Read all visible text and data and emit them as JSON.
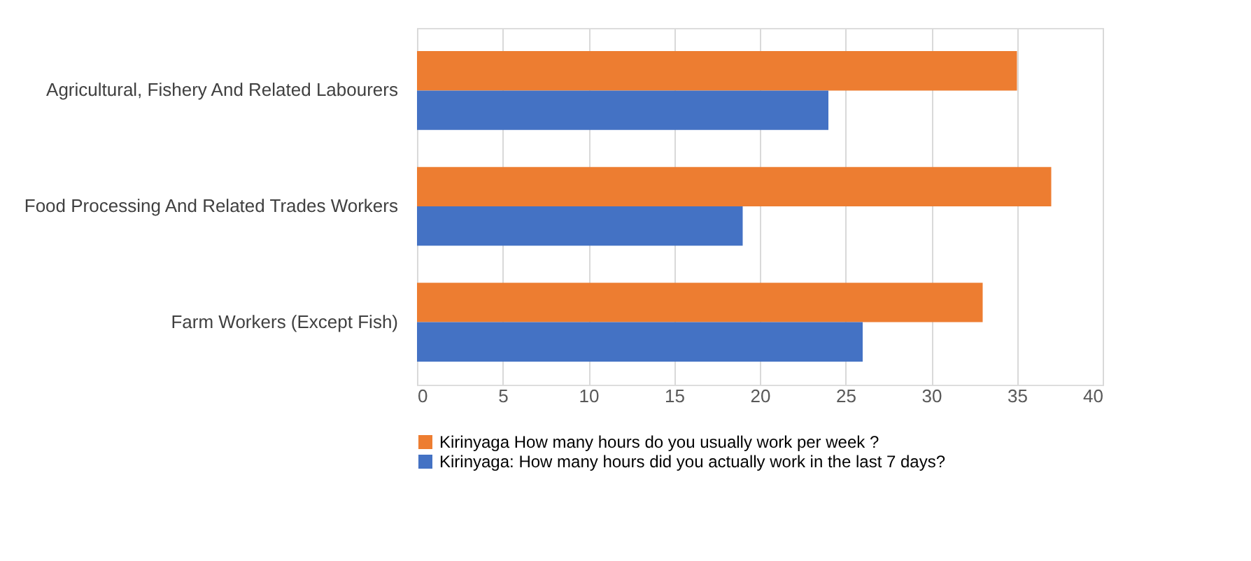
{
  "chart_data": {
    "type": "bar",
    "orientation": "horizontal",
    "categories": [
      "Agricultural, Fishery And Related Labourers",
      "Food Processing And Related Trades Workers",
      "Farm Workers (Except Fish)"
    ],
    "series": [
      {
        "name": "Kirinyaga How many hours do you usually work per week ?",
        "color": "#ed7d31",
        "values": [
          35,
          37,
          33
        ]
      },
      {
        "name": "Kirinyaga: How many hours did you actually work in the last 7 days?",
        "color": "#4472c4",
        "values": [
          24,
          19,
          26
        ]
      }
    ],
    "xlim": [
      0,
      40
    ],
    "xticks": [
      0,
      5,
      10,
      15,
      20,
      25,
      30,
      35,
      40
    ],
    "grid": "x",
    "legend": "bottom"
  }
}
